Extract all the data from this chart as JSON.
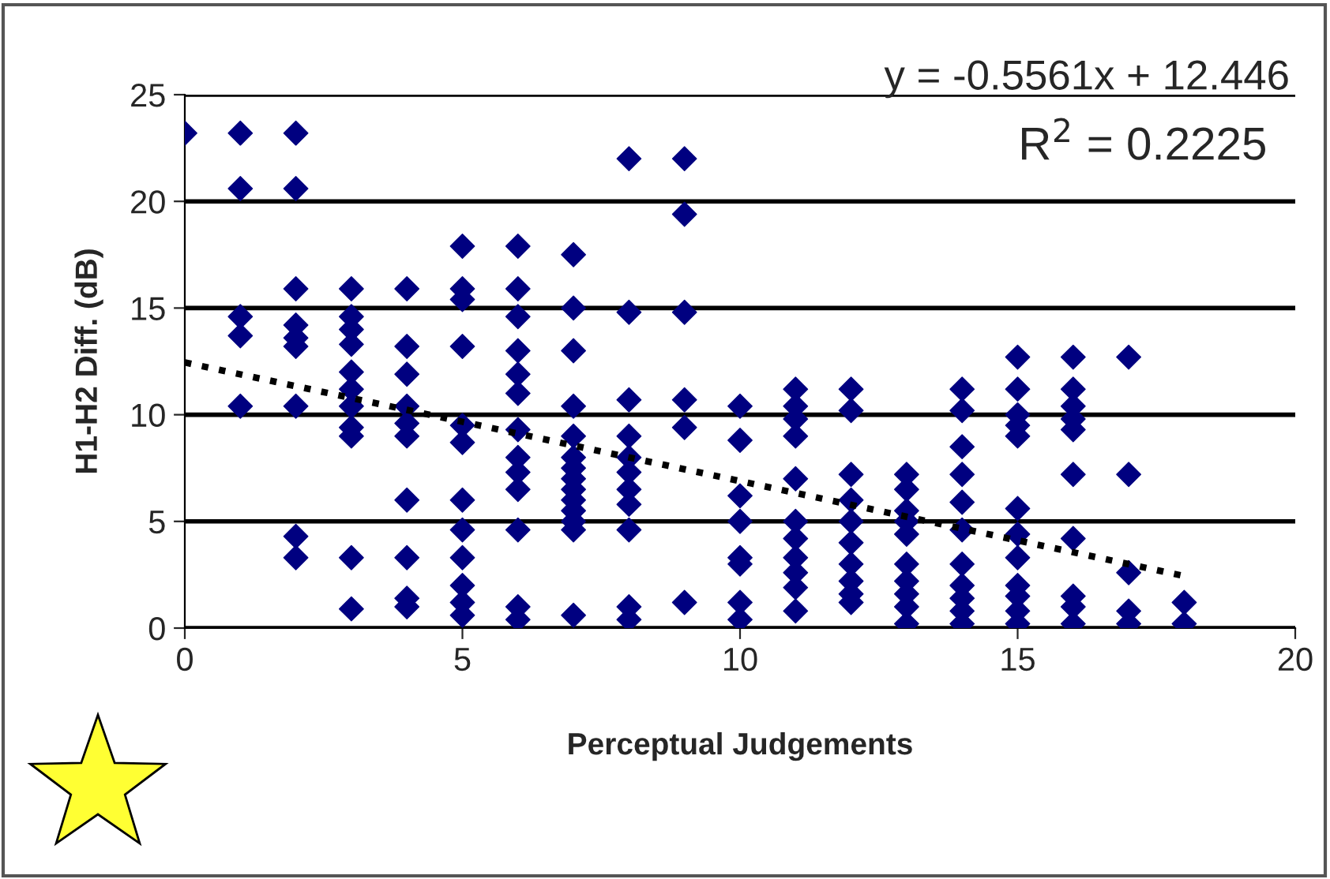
{
  "chart_data": {
    "type": "scatter",
    "xlabel": "Perceptual Judgements",
    "ylabel": "H1-H2 Diff. (dB)",
    "annotations": [
      "y = -0.5561x + 12.446",
      "R$^{2}$ = 0.2225"
    ],
    "xlim": [
      0,
      20
    ],
    "xticks": [
      0,
      5,
      10,
      15,
      20
    ],
    "ylim": [
      0,
      25
    ],
    "yticks": [
      0,
      5,
      10,
      15,
      20,
      25
    ],
    "grid": "y",
    "marker": "diamond",
    "legend": false,
    "series": [
      {
        "color": "#000080",
        "x": [
          0,
          1,
          1,
          1,
          1,
          1,
          2,
          2,
          2,
          2,
          2,
          2,
          2,
          2,
          2,
          3,
          3,
          3,
          3,
          3,
          3,
          3,
          3,
          3,
          3,
          3,
          4,
          4,
          4,
          4,
          4,
          4,
          4,
          4,
          4,
          4,
          5,
          5,
          5,
          5,
          5,
          5,
          5,
          5,
          5,
          5,
          5,
          5,
          6,
          6,
          6,
          6,
          6,
          6,
          6,
          6,
          6,
          6,
          6,
          6,
          6,
          7,
          7,
          7,
          7,
          7,
          7,
          7,
          7,
          7,
          7,
          7,
          7,
          7,
          7,
          8,
          8,
          8,
          8,
          8,
          8,
          8,
          8,
          8,
          8,
          8,
          9,
          9,
          9,
          9,
          9,
          9,
          10,
          10,
          10,
          10,
          10,
          10,
          10,
          10,
          11,
          11,
          11,
          11,
          11,
          11,
          11,
          11,
          11,
          11,
          11,
          12,
          12,
          12,
          12,
          12,
          12,
          12,
          12,
          12,
          12,
          13,
          13,
          13,
          13,
          13,
          13,
          13,
          13,
          13,
          13,
          14,
          14,
          14,
          14,
          14,
          14,
          14,
          14,
          14,
          14,
          14,
          15,
          15,
          15,
          15,
          15,
          15,
          15,
          15,
          15,
          15,
          15,
          15,
          16,
          16,
          16,
          16,
          16,
          16,
          16,
          16,
          16,
          16,
          17,
          17,
          17,
          17,
          17,
          18,
          18
        ],
        "values": [
          23.2,
          23.2,
          20.6,
          14.6,
          13.7,
          10.4,
          23.2,
          20.6,
          15.9,
          14.2,
          13.6,
          13.2,
          10.4,
          4.3,
          3.3,
          15.9,
          14.6,
          14.0,
          13.3,
          12.0,
          11.2,
          10.4,
          9.4,
          9.0,
          3.3,
          0.9,
          15.9,
          13.2,
          11.9,
          10.4,
          9.6,
          9.0,
          6.0,
          3.3,
          1.4,
          1.0,
          17.9,
          15.9,
          15.4,
          13.2,
          9.5,
          8.7,
          6.0,
          4.6,
          3.3,
          2.0,
          1.2,
          0.6,
          17.9,
          15.9,
          14.6,
          13.0,
          11.9,
          11.0,
          9.3,
          8.0,
          7.3,
          6.5,
          4.6,
          1.0,
          0.4,
          17.5,
          15.0,
          13.0,
          10.4,
          9.0,
          8.0,
          7.5,
          7.0,
          6.5,
          6.0,
          5.5,
          5.0,
          4.6,
          0.6,
          22.0,
          14.8,
          10.7,
          9.0,
          8.0,
          7.3,
          6.5,
          5.8,
          4.6,
          1.0,
          0.4,
          22.0,
          19.4,
          14.8,
          10.7,
          9.4,
          1.2,
          10.4,
          8.8,
          6.2,
          5.0,
          3.3,
          3.0,
          1.2,
          0.4,
          11.2,
          10.4,
          9.8,
          9.0,
          7.0,
          5.0,
          4.2,
          3.3,
          2.6,
          1.9,
          0.8,
          11.2,
          10.2,
          7.2,
          6.0,
          5.0,
          4.0,
          3.0,
          2.2,
          1.6,
          1.2,
          7.2,
          6.5,
          5.5,
          5.0,
          4.4,
          3.0,
          2.2,
          1.6,
          1.0,
          0.2,
          11.2,
          10.2,
          8.5,
          7.2,
          5.9,
          4.6,
          3.0,
          2.0,
          1.4,
          0.8,
          0.2,
          12.7,
          11.2,
          10.0,
          9.5,
          9.0,
          5.6,
          4.4,
          3.3,
          2.0,
          1.5,
          0.8,
          0.2,
          12.7,
          11.2,
          10.4,
          9.8,
          9.3,
          7.2,
          4.2,
          1.5,
          1.0,
          0.2,
          12.7,
          7.2,
          2.6,
          0.8,
          0.2,
          1.2,
          0.2
        ]
      },
      {
        "type": "line",
        "color": "#000000",
        "x": [
          0,
          18
        ],
        "values": [
          12.45,
          2.44
        ],
        "marker": "none",
        "line_style": "dotted"
      }
    ]
  }
}
